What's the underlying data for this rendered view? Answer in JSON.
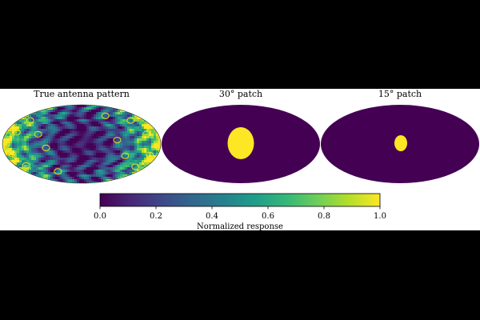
{
  "figure": {
    "background": "#000000",
    "panel_background": "#ffffff"
  },
  "chart_data": {
    "type": "heatmap",
    "projection": "mollweide",
    "colormap": "viridis",
    "panels": [
      {
        "title": "True antenna pattern",
        "kind": "pattern"
      },
      {
        "title": "30° patch",
        "kind": "patch",
        "patch_value": 1.0,
        "background_value": 0.0
      },
      {
        "title": "15° patch",
        "kind": "patch",
        "patch_value": 1.0,
        "background_value": 0.0
      }
    ],
    "colorbar": {
      "label": "Normalized response",
      "range": [
        0.0,
        1.0
      ],
      "ticks": [
        "0.0",
        "0.2",
        "0.4",
        "0.6",
        "0.8",
        "1.0"
      ],
      "colors": [
        "#440154",
        "#482878",
        "#3e4989",
        "#31688e",
        "#26828e",
        "#1f9e89",
        "#35b779",
        "#6ece58",
        "#b5de2b",
        "#fde725"
      ]
    }
  }
}
